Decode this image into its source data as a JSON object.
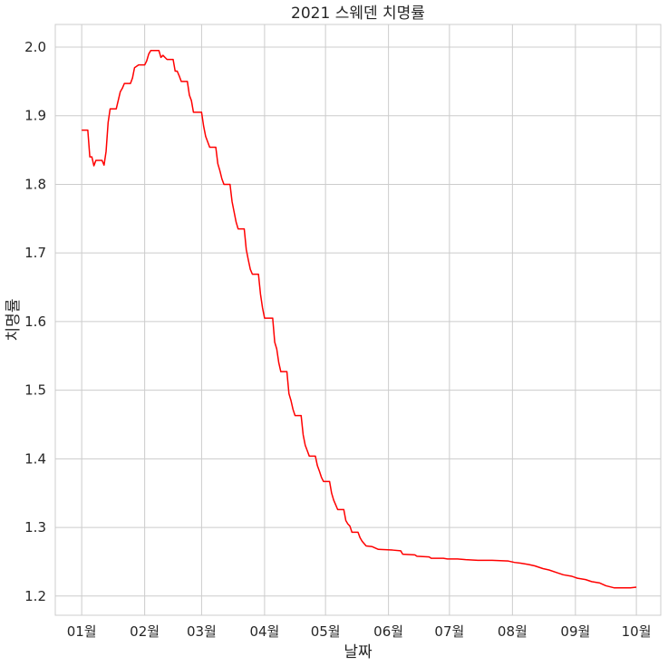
{
  "chart_data": {
    "type": "line",
    "title": "2021 스웨덴 치명률",
    "xlabel": "날짜",
    "ylabel": "치명률",
    "x_tick_labels": [
      "01월",
      "02월",
      "03월",
      "04월",
      "05월",
      "06월",
      "07월",
      "08월",
      "09월",
      "10월"
    ],
    "x_tick_dates": [
      "2021-01-01",
      "2021-02-01",
      "2021-03-01",
      "2021-04-01",
      "2021-05-01",
      "2021-06-01",
      "2021-07-01",
      "2021-08-01",
      "2021-09-01",
      "2021-10-01"
    ],
    "y_ticks": [
      1.2,
      1.3,
      1.4,
      1.5,
      1.6,
      1.7,
      1.8,
      1.9,
      2.0
    ],
    "y_tick_labels": [
      "1.2",
      "1.3",
      "1.4",
      "1.5",
      "1.6",
      "1.7",
      "1.8",
      "1.9",
      "2.0"
    ],
    "xlim": [
      "2020-12-19",
      "2021-10-13"
    ],
    "ylim": [
      1.172,
      2.033
    ],
    "grid": true,
    "color": "#ff0000",
    "series": [
      {
        "points": [
          [
            "2021-01-01",
            1.879
          ],
          [
            "2021-01-04",
            1.879
          ],
          [
            "2021-01-05",
            1.84
          ],
          [
            "2021-01-06",
            1.84
          ],
          [
            "2021-01-07",
            1.827
          ],
          [
            "2021-01-08",
            1.835
          ],
          [
            "2021-01-11",
            1.835
          ],
          [
            "2021-01-12",
            1.828
          ],
          [
            "2021-01-13",
            1.848
          ],
          [
            "2021-01-14",
            1.89
          ],
          [
            "2021-01-15",
            1.91
          ],
          [
            "2021-01-18",
            1.91
          ],
          [
            "2021-01-20",
            1.935
          ],
          [
            "2021-01-21",
            1.94
          ],
          [
            "2021-01-22",
            1.947
          ],
          [
            "2021-01-25",
            1.947
          ],
          [
            "2021-01-26",
            1.955
          ],
          [
            "2021-01-27",
            1.97
          ],
          [
            "2021-01-29",
            1.974
          ],
          [
            "2021-02-01",
            1.974
          ],
          [
            "2021-02-02",
            1.98
          ],
          [
            "2021-02-03",
            1.99
          ],
          [
            "2021-02-04",
            1.995
          ],
          [
            "2021-02-08",
            1.995
          ],
          [
            "2021-02-09",
            1.985
          ],
          [
            "2021-02-10",
            1.988
          ],
          [
            "2021-02-11",
            1.985
          ],
          [
            "2021-02-12",
            1.982
          ],
          [
            "2021-02-15",
            1.982
          ],
          [
            "2021-02-16",
            1.965
          ],
          [
            "2021-02-17",
            1.965
          ],
          [
            "2021-02-18",
            1.958
          ],
          [
            "2021-02-19",
            1.95
          ],
          [
            "2021-02-22",
            1.95
          ],
          [
            "2021-02-23",
            1.93
          ],
          [
            "2021-02-24",
            1.922
          ],
          [
            "2021-02-25",
            1.905
          ],
          [
            "2021-03-01",
            1.905
          ],
          [
            "2021-03-02",
            1.885
          ],
          [
            "2021-03-03",
            1.87
          ],
          [
            "2021-03-04",
            1.862
          ],
          [
            "2021-03-05",
            1.854
          ],
          [
            "2021-03-08",
            1.854
          ],
          [
            "2021-03-09",
            1.83
          ],
          [
            "2021-03-10",
            1.82
          ],
          [
            "2021-03-11",
            1.808
          ],
          [
            "2021-03-12",
            1.8
          ],
          [
            "2021-03-15",
            1.8
          ],
          [
            "2021-03-16",
            1.775
          ],
          [
            "2021-03-17",
            1.76
          ],
          [
            "2021-03-18",
            1.745
          ],
          [
            "2021-03-19",
            1.735
          ],
          [
            "2021-03-22",
            1.735
          ],
          [
            "2021-03-23",
            1.705
          ],
          [
            "2021-03-24",
            1.69
          ],
          [
            "2021-03-25",
            1.676
          ],
          [
            "2021-03-26",
            1.669
          ],
          [
            "2021-03-29",
            1.669
          ],
          [
            "2021-03-30",
            1.64
          ],
          [
            "2021-03-31",
            1.62
          ],
          [
            "2021-04-01",
            1.605
          ],
          [
            "2021-04-05",
            1.605
          ],
          [
            "2021-04-06",
            1.57
          ],
          [
            "2021-04-07",
            1.56
          ],
          [
            "2021-04-08",
            1.54
          ],
          [
            "2021-04-09",
            1.527
          ],
          [
            "2021-04-12",
            1.527
          ],
          [
            "2021-04-13",
            1.495
          ],
          [
            "2021-04-14",
            1.485
          ],
          [
            "2021-04-15",
            1.472
          ],
          [
            "2021-04-16",
            1.463
          ],
          [
            "2021-04-19",
            1.463
          ],
          [
            "2021-04-20",
            1.435
          ],
          [
            "2021-04-21",
            1.42
          ],
          [
            "2021-04-22",
            1.412
          ],
          [
            "2021-04-23",
            1.404
          ],
          [
            "2021-04-26",
            1.404
          ],
          [
            "2021-04-27",
            1.39
          ],
          [
            "2021-04-28",
            1.382
          ],
          [
            "2021-04-29",
            1.373
          ],
          [
            "2021-04-30",
            1.367
          ],
          [
            "2021-05-03",
            1.367
          ],
          [
            "2021-05-04",
            1.35
          ],
          [
            "2021-05-05",
            1.34
          ],
          [
            "2021-05-06",
            1.333
          ],
          [
            "2021-05-07",
            1.326
          ],
          [
            "2021-05-10",
            1.326
          ],
          [
            "2021-05-11",
            1.31
          ],
          [
            "2021-05-12",
            1.305
          ],
          [
            "2021-05-13",
            1.302
          ],
          [
            "2021-05-14",
            1.293
          ],
          [
            "2021-05-17",
            1.293
          ],
          [
            "2021-05-18",
            1.285
          ],
          [
            "2021-05-19",
            1.28
          ],
          [
            "2021-05-21",
            1.273
          ],
          [
            "2021-05-24",
            1.272
          ],
          [
            "2021-05-27",
            1.268
          ],
          [
            "2021-06-03",
            1.267
          ],
          [
            "2021-06-07",
            1.266
          ],
          [
            "2021-06-08",
            1.261
          ],
          [
            "2021-06-14",
            1.26
          ],
          [
            "2021-06-15",
            1.258
          ],
          [
            "2021-06-21",
            1.257
          ],
          [
            "2021-06-22",
            1.255
          ],
          [
            "2021-06-28",
            1.255
          ],
          [
            "2021-06-30",
            1.254
          ],
          [
            "2021-07-05",
            1.254
          ],
          [
            "2021-07-09",
            1.253
          ],
          [
            "2021-07-15",
            1.252
          ],
          [
            "2021-07-22",
            1.252
          ],
          [
            "2021-07-30",
            1.251
          ],
          [
            "2021-08-02",
            1.249
          ],
          [
            "2021-08-05",
            1.248
          ],
          [
            "2021-08-09",
            1.246
          ],
          [
            "2021-08-12",
            1.244
          ],
          [
            "2021-08-16",
            1.24
          ],
          [
            "2021-08-19",
            1.238
          ],
          [
            "2021-08-23",
            1.234
          ],
          [
            "2021-08-26",
            1.231
          ],
          [
            "2021-08-30",
            1.229
          ],
          [
            "2021-09-02",
            1.226
          ],
          [
            "2021-09-06",
            1.224
          ],
          [
            "2021-09-09",
            1.221
          ],
          [
            "2021-09-13",
            1.219
          ],
          [
            "2021-09-16",
            1.215
          ],
          [
            "2021-09-20",
            1.212
          ],
          [
            "2021-09-24",
            1.212
          ],
          [
            "2021-09-28",
            1.212
          ],
          [
            "2021-10-01",
            1.213
          ]
        ]
      }
    ]
  }
}
